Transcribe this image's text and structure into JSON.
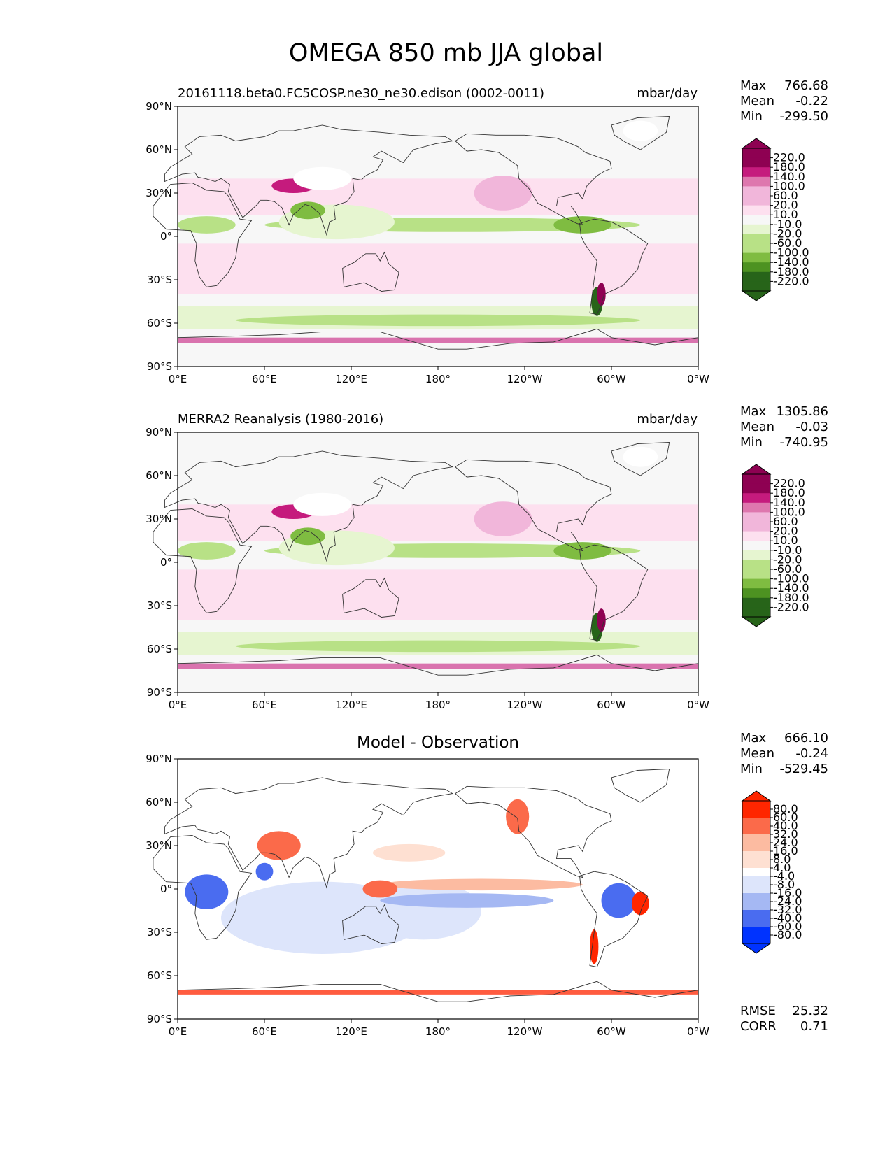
{
  "title": "OMEGA 850 mb JJA global",
  "colors": {
    "pink": [
      "#8e0152",
      "#c51b7d",
      "#de77ae",
      "#f1b6da",
      "#fde0ef"
    ],
    "green": [
      "#276419",
      "#4d9221",
      "#7fbc41",
      "#b8e186",
      "#e6f5d0"
    ],
    "neutral": "#f7f7f7",
    "red": [
      "#ff2600",
      "#fb6a4a",
      "#fcbba1",
      "#fee0d2"
    ],
    "blue": [
      "#0033ff",
      "#4a6cf0",
      "#a5b8f3",
      "#dde5fb"
    ],
    "coast": "#333333"
  },
  "panels": [
    {
      "id": "model",
      "title_left": "20161118.beta0.FC5COSP.ne30_ne30.edison (0002-0011)",
      "title_right": "mbar/day",
      "title_center": "",
      "stats": {
        "max_label": "Max",
        "max": "766.68",
        "mean_label": "Mean",
        "mean": "-0.22",
        "min_label": "Min",
        "min": "-299.50"
      },
      "colorbar_labels": [
        "220.0",
        "180.0",
        "140.0",
        "100.0",
        "60.0",
        "20.0",
        "10.0",
        "-10.0",
        "-20.0",
        "-60.0",
        "-100.0",
        "-140.0",
        "-180.0",
        "-220.0"
      ]
    },
    {
      "id": "obs",
      "title_left": "MERRA2 Reanalysis (1980-2016)",
      "title_right": "mbar/day",
      "title_center": "",
      "stats": {
        "max_label": "Max",
        "max": "1305.86",
        "mean_label": "Mean",
        "mean": "-0.03",
        "min_label": "Min",
        "min": "-740.95"
      },
      "colorbar_labels": [
        "220.0",
        "180.0",
        "140.0",
        "100.0",
        "60.0",
        "20.0",
        "10.0",
        "-10.0",
        "-20.0",
        "-60.0",
        "-100.0",
        "-140.0",
        "-180.0",
        "-220.0"
      ]
    },
    {
      "id": "diff",
      "title_left": "",
      "title_right": "",
      "title_center": "Model - Observation",
      "stats": {
        "max_label": "Max",
        "max": "666.10",
        "mean_label": "Mean",
        "mean": "-0.24",
        "min_label": "Min",
        "min": "-529.45"
      },
      "colorbar_labels": [
        "80.0",
        "60.0",
        "40.0",
        "32.0",
        "24.0",
        "16.0",
        "8.0",
        "4.0",
        "-4.0",
        "-8.0",
        "-16.0",
        "-24.0",
        "-32.0",
        "-40.0",
        "-60.0",
        "-80.0"
      ],
      "error_stats": {
        "rmse_label": "RMSE",
        "rmse": "25.32",
        "corr_label": "CORR",
        "corr": "0.71"
      }
    }
  ],
  "axes": {
    "y_ticks": [
      "90°N",
      "60°N",
      "30°N",
      "0°",
      "30°S",
      "60°S",
      "90°S"
    ],
    "x_ticks": [
      "0°E",
      "60°E",
      "120°E",
      "180°",
      "120°W",
      "60°W",
      "0°W"
    ]
  },
  "chart_data": [
    {
      "type": "heatmap",
      "title": "20161118.beta0.FC5COSP.ne30_ne30.edison (0002-0011)",
      "units": "mbar/day",
      "xlabel": "",
      "ylabel": "",
      "x_ticks": [
        "0°E",
        "60°E",
        "120°E",
        "180°",
        "120°W",
        "60°W",
        "0°W"
      ],
      "y_ticks": [
        "90°N",
        "60°N",
        "30°N",
        "0°",
        "30°S",
        "60°S",
        "90°S"
      ],
      "xlim": [
        0,
        360
      ],
      "ylim": [
        -90,
        90
      ],
      "levels": [
        -220,
        -180,
        -140,
        -100,
        -60,
        -20,
        -10,
        10,
        20,
        60,
        100,
        140,
        180,
        220
      ],
      "max": 766.68,
      "mean": -0.22,
      "min": -299.5
    },
    {
      "type": "heatmap",
      "title": "MERRA2 Reanalysis (1980-2016)",
      "units": "mbar/day",
      "xlabel": "",
      "ylabel": "",
      "x_ticks": [
        "0°E",
        "60°E",
        "120°E",
        "180°",
        "120°W",
        "60°W",
        "0°W"
      ],
      "y_ticks": [
        "90°N",
        "60°N",
        "30°N",
        "0°",
        "30°S",
        "60°S",
        "90°S"
      ],
      "xlim": [
        0,
        360
      ],
      "ylim": [
        -90,
        90
      ],
      "levels": [
        -220,
        -180,
        -140,
        -100,
        -60,
        -20,
        -10,
        10,
        20,
        60,
        100,
        140,
        180,
        220
      ],
      "max": 1305.86,
      "mean": -0.03,
      "min": -740.95
    },
    {
      "type": "heatmap",
      "title": "Model - Observation",
      "xlabel": "",
      "ylabel": "",
      "x_ticks": [
        "0°E",
        "60°E",
        "120°E",
        "180°",
        "120°W",
        "60°W",
        "0°W"
      ],
      "y_ticks": [
        "90°N",
        "60°N",
        "30°N",
        "0°",
        "30°S",
        "60°S",
        "90°S"
      ],
      "xlim": [
        0,
        360
      ],
      "ylim": [
        -90,
        90
      ],
      "levels": [
        -80,
        -60,
        -40,
        -32,
        -24,
        -16,
        -8,
        -4,
        4,
        8,
        16,
        24,
        32,
        40,
        60,
        80
      ],
      "max": 666.1,
      "mean": -0.24,
      "min": -529.45,
      "rmse": 25.32,
      "corr": 0.71
    }
  ]
}
